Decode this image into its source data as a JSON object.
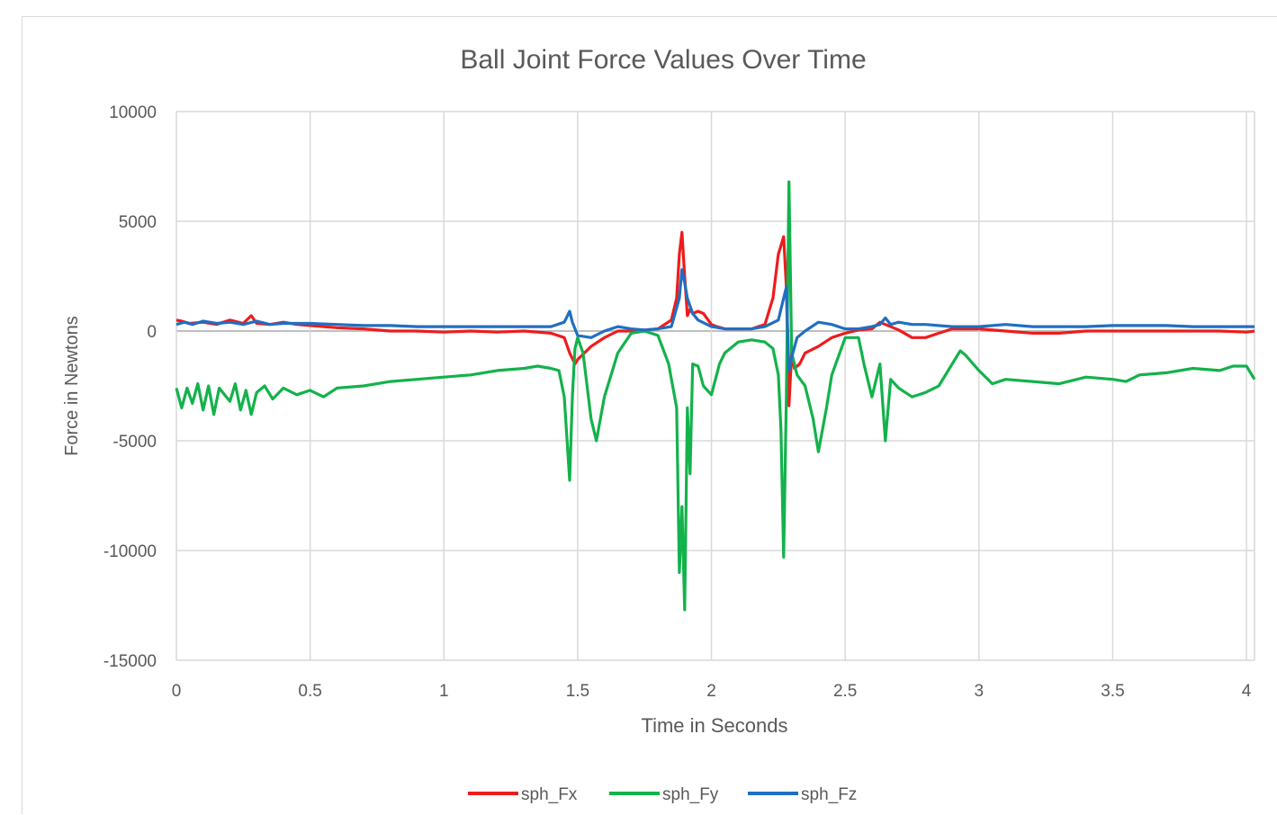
{
  "chart_data": {
    "type": "line",
    "title": "Ball Joint Force Values Over Time",
    "xlabel": "Time in Seconds",
    "ylabel": "Force in Newtons",
    "xlim": [
      0,
      4.03
    ],
    "ylim": [
      -15000,
      10000
    ],
    "xticks": [
      0,
      0.5,
      1,
      1.5,
      2,
      2.5,
      3,
      3.5,
      4
    ],
    "xtick_labels": [
      "0",
      "0.5",
      "1",
      "1.5",
      "2",
      "2.5",
      "3",
      "3.5",
      "4"
    ],
    "yticks": [
      10000,
      5000,
      0,
      -5000,
      -10000,
      -15000
    ],
    "ytick_labels": [
      "10000",
      "5000",
      "0",
      "-5000",
      "-10000",
      "-15000"
    ],
    "grid": true,
    "legend": "bottom",
    "colors": {
      "sph_Fx": "#ee1c1c",
      "sph_Fy": "#13b24b",
      "sph_Fz": "#1f6fc2",
      "grid": "#d9d9d9",
      "zero_line": "#bfbfbf"
    },
    "series": [
      {
        "name": "sph_Fx",
        "x": [
          0,
          0.02,
          0.05,
          0.1,
          0.15,
          0.2,
          0.25,
          0.28,
          0.3,
          0.35,
          0.4,
          0.45,
          0.5,
          0.6,
          0.7,
          0.8,
          0.9,
          1.0,
          1.1,
          1.2,
          1.3,
          1.4,
          1.45,
          1.47,
          1.49,
          1.5,
          1.55,
          1.6,
          1.65,
          1.7,
          1.75,
          1.8,
          1.85,
          1.87,
          1.88,
          1.89,
          1.9,
          1.91,
          1.92,
          1.93,
          1.95,
          1.97,
          2.0,
          2.02,
          2.05,
          2.1,
          2.15,
          2.2,
          2.23,
          2.25,
          2.27,
          2.28,
          2.29,
          2.3,
          2.31,
          2.33,
          2.35,
          2.4,
          2.45,
          2.5,
          2.55,
          2.6,
          2.63,
          2.65,
          2.7,
          2.75,
          2.8,
          2.85,
          2.9,
          3.0,
          3.1,
          3.2,
          3.3,
          3.4,
          3.5,
          3.6,
          3.7,
          3.8,
          3.9,
          4.0,
          4.03
        ],
        "y": [
          500,
          450,
          350,
          400,
          300,
          500,
          350,
          700,
          350,
          300,
          400,
          300,
          250,
          150,
          100,
          0,
          0,
          -50,
          0,
          -50,
          0,
          -100,
          -300,
          -1000,
          -1500,
          -1300,
          -700,
          -300,
          0,
          0,
          50,
          100,
          500,
          1500,
          3500,
          4500,
          2500,
          700,
          1000,
          800,
          900,
          800,
          300,
          200,
          100,
          100,
          100,
          300,
          1500,
          3500,
          4300,
          2000,
          -3400,
          -1000,
          -1700,
          -1500,
          -1000,
          -700,
          -300,
          -100,
          50,
          100,
          400,
          300,
          50,
          -300,
          -300,
          -100,
          100,
          100,
          0,
          -100,
          -100,
          0,
          0,
          0,
          0,
          0,
          0,
          -50,
          0
        ]
      },
      {
        "name": "sph_Fy",
        "x": [
          0,
          0.02,
          0.04,
          0.06,
          0.08,
          0.1,
          0.12,
          0.14,
          0.16,
          0.18,
          0.2,
          0.22,
          0.24,
          0.26,
          0.28,
          0.3,
          0.33,
          0.36,
          0.4,
          0.45,
          0.5,
          0.55,
          0.6,
          0.7,
          0.8,
          0.9,
          1.0,
          1.1,
          1.2,
          1.3,
          1.35,
          1.4,
          1.43,
          1.45,
          1.47,
          1.48,
          1.49,
          1.5,
          1.52,
          1.55,
          1.57,
          1.6,
          1.65,
          1.7,
          1.75,
          1.8,
          1.84,
          1.87,
          1.88,
          1.89,
          1.9,
          1.91,
          1.92,
          1.93,
          1.95,
          1.97,
          2.0,
          2.03,
          2.05,
          2.1,
          2.15,
          2.2,
          2.23,
          2.25,
          2.26,
          2.27,
          2.28,
          2.29,
          2.3,
          2.32,
          2.35,
          2.38,
          2.4,
          2.43,
          2.45,
          2.5,
          2.55,
          2.57,
          2.6,
          2.63,
          2.65,
          2.67,
          2.7,
          2.75,
          2.8,
          2.85,
          2.9,
          2.93,
          2.95,
          3.0,
          3.05,
          3.1,
          3.2,
          3.3,
          3.4,
          3.5,
          3.55,
          3.6,
          3.7,
          3.8,
          3.9,
          3.95,
          4.0,
          4.03
        ],
        "y": [
          -2600,
          -3500,
          -2600,
          -3300,
          -2400,
          -3600,
          -2500,
          -3800,
          -2600,
          -2900,
          -3200,
          -2400,
          -3600,
          -2700,
          -3800,
          -2800,
          -2500,
          -3100,
          -2600,
          -2900,
          -2700,
          -3000,
          -2600,
          -2500,
          -2300,
          -2200,
          -2100,
          -2000,
          -1800,
          -1700,
          -1600,
          -1700,
          -1800,
          -3000,
          -6800,
          -3000,
          -800,
          -300,
          -1000,
          -4000,
          -5000,
          -3000,
          -1000,
          -100,
          0,
          -200,
          -1500,
          -3500,
          -11000,
          -8000,
          -12700,
          -3500,
          -6500,
          -1500,
          -1600,
          -2500,
          -2900,
          -1500,
          -1000,
          -500,
          -400,
          -500,
          -800,
          -2000,
          -4500,
          -10300,
          -3000,
          6800,
          -1000,
          -2000,
          -2500,
          -4000,
          -5500,
          -3500,
          -2000,
          -300,
          -300,
          -1500,
          -3000,
          -1500,
          -5000,
          -2200,
          -2600,
          -3000,
          -2800,
          -2500,
          -1500,
          -900,
          -1100,
          -1800,
          -2400,
          -2200,
          -2300,
          -2400,
          -2100,
          -2200,
          -2300,
          -2000,
          -1900,
          -1700,
          -1800,
          -1600,
          -1600,
          -2200
        ]
      },
      {
        "name": "sph_Fz",
        "x": [
          0,
          0.03,
          0.06,
          0.1,
          0.15,
          0.2,
          0.25,
          0.3,
          0.35,
          0.4,
          0.45,
          0.5,
          0.6,
          0.7,
          0.8,
          0.9,
          1.0,
          1.1,
          1.2,
          1.3,
          1.4,
          1.45,
          1.47,
          1.48,
          1.5,
          1.55,
          1.6,
          1.65,
          1.7,
          1.75,
          1.8,
          1.85,
          1.88,
          1.89,
          1.9,
          1.91,
          1.93,
          1.95,
          2.0,
          2.05,
          2.1,
          2.15,
          2.2,
          2.25,
          2.27,
          2.28,
          2.29,
          2.3,
          2.32,
          2.35,
          2.4,
          2.45,
          2.5,
          2.55,
          2.6,
          2.63,
          2.65,
          2.67,
          2.7,
          2.75,
          2.8,
          2.9,
          3.0,
          3.1,
          3.2,
          3.3,
          3.4,
          3.5,
          3.6,
          3.7,
          3.8,
          3.9,
          4.0,
          4.03
        ],
        "y": [
          300,
          400,
          300,
          450,
          350,
          400,
          300,
          450,
          300,
          350,
          350,
          350,
          300,
          250,
          250,
          200,
          200,
          200,
          200,
          200,
          200,
          400,
          900,
          400,
          -200,
          -300,
          0,
          200,
          100,
          50,
          100,
          200,
          1500,
          2800,
          2200,
          1500,
          800,
          500,
          200,
          100,
          100,
          100,
          200,
          500,
          1500,
          2000,
          -1800,
          -1200,
          -300,
          0,
          400,
          300,
          100,
          100,
          200,
          300,
          600,
          300,
          400,
          300,
          300,
          200,
          200,
          300,
          200,
          200,
          200,
          250,
          250,
          250,
          200,
          200,
          200,
          200
        ]
      }
    ]
  }
}
